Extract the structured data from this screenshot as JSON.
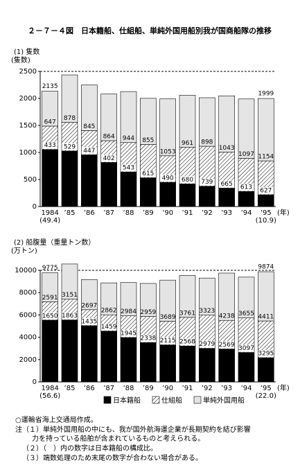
{
  "title": "２－７－４図　日本籍船、仕組船、単純外国用船別我が国商船隊の推移",
  "chart_data": [
    {
      "type": "bar",
      "stacked": true,
      "subtitle": "(1)  隻数",
      "y_label": "(隻数)",
      "x_label": "(年)",
      "categories": [
        "1984",
        "’85",
        "’86",
        "’87",
        "’88",
        "’89",
        "’90",
        "’91",
        "’92",
        "’93",
        "’94",
        "’95"
      ],
      "category_notes": [
        "(49.4)",
        null,
        null,
        null,
        null,
        null,
        null,
        null,
        null,
        null,
        null,
        "(10.9)"
      ],
      "ylim": [
        0,
        2500
      ],
      "yticks": [
        0,
        500,
        1000,
        1500,
        2000,
        2500
      ],
      "series": [
        {
          "color": "#000000",
          "values": [
            1055,
            1028,
            957,
            816,
            640,
            532,
            449,
            419,
            376,
            340,
            280,
            218
          ]
        },
        {
          "color": "hatch",
          "values": [
            433,
            529,
            447,
            402,
            543,
            615,
            490,
            680,
            739,
            665,
            613,
            627
          ]
        },
        {
          "color": "#e4e4e4",
          "values": [
            647,
            878,
            845,
            864,
            944,
            855,
            1053,
            961,
            898,
            1043,
            1097,
            1154
          ]
        }
      ],
      "totals": [
        2135,
        null,
        null,
        null,
        null,
        null,
        null,
        null,
        null,
        null,
        null,
        1999
      ]
    },
    {
      "type": "bar",
      "stacked": true,
      "subtitle": "(2)  船腹量（重量トン数）",
      "y_label": "(万トン)",
      "x_label": "(年)",
      "categories": [
        "1984",
        "’85",
        "’86",
        "’87",
        "’88",
        "’89",
        "’90",
        "’91",
        "’92",
        "’93",
        "’94",
        "’95"
      ],
      "category_notes": [
        "(56.6)",
        null,
        null,
        null,
        null,
        null,
        null,
        null,
        null,
        null,
        null,
        "(22.0)"
      ],
      "ylim": [
        0,
        10000
      ],
      "yticks": [
        0,
        2000,
        4000,
        6000,
        8000,
        10000
      ],
      "series": [
        {
          "name": "日本籍船",
          "color": "#000000",
          "values": [
            5535,
            5551,
            5038,
            4553,
            3977,
            3526,
            3316,
            3219,
            3004,
            2945,
            2638,
            2168
          ]
        },
        {
          "name": "仕組船",
          "color": "hatch",
          "values": [
            1650,
            1863,
            1435,
            1459,
            1945,
            2338,
            2115,
            2568,
            2979,
            2569,
            3097,
            3295
          ]
        },
        {
          "name": "単純外国用船",
          "color": "#e4e4e4",
          "values": [
            2591,
            3151,
            2697,
            2862,
            2984,
            2959,
            3689,
            3761,
            3323,
            4238,
            3655,
            4411
          ]
        }
      ],
      "totals": [
        9775,
        null,
        null,
        null,
        null,
        null,
        null,
        null,
        null,
        null,
        null,
        9874
      ]
    }
  ],
  "notes": [
    "○運輸省海上交通局作成。",
    "注（１）単純外国用船の中にも、我が国外航海運企業が長期契約を結び影響",
    "力を持っている船舶が含まれているものと考えられる。",
    "（２）（　）内の数字は日本籍船の構成比。",
    "（３）端数処理のため末尾の数字が合わない場合がある。"
  ]
}
